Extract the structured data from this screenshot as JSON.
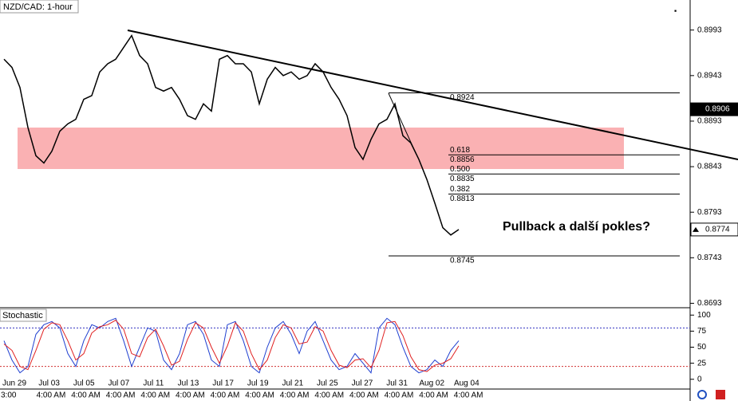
{
  "chart_data": [
    {
      "type": "line",
      "title": "NZD/CAD: 1-hour",
      "series": [
        {
          "name": "Close",
          "color": "#000000",
          "values": [
            0.8961,
            0.8952,
            0.893,
            0.8886,
            0.8855,
            0.8847,
            0.886,
            0.8882,
            0.889,
            0.8895,
            0.8917,
            0.8921,
            0.8947,
            0.8956,
            0.8961,
            0.8974,
            0.8987,
            0.8965,
            0.8956,
            0.893,
            0.8926,
            0.893,
            0.8917,
            0.8899,
            0.8895,
            0.8912,
            0.8904,
            0.8961,
            0.8965,
            0.8956,
            0.8956,
            0.8947,
            0.8912,
            0.8939,
            0.8952,
            0.8943,
            0.8947,
            0.8939,
            0.8943,
            0.8956,
            0.8947,
            0.893,
            0.8917,
            0.8899,
            0.8864,
            0.8851,
            0.8873,
            0.889,
            0.8895,
            0.8912,
            0.8877,
            0.8869,
            0.8851,
            0.8829,
            0.8803,
            0.8776,
            0.8768,
            0.8774
          ]
        }
      ],
      "ylim": [
        0.8689,
        0.9026
      ],
      "yticks": [
        0.8993,
        0.8943,
        0.8893,
        0.8843,
        0.8793,
        0.8743,
        0.8693
      ],
      "price_markers": [
        0.8906,
        0.8774
      ],
      "fib": {
        "high": 0.8924,
        "low": 0.8745,
        "levels": [
          {
            "ratio": "0.618",
            "price": 0.8856
          },
          {
            "ratio": "0.500",
            "price": 0.8835
          },
          {
            "ratio": "0.382",
            "price": 0.8813
          }
        ]
      },
      "annotation": "Pullback a další pokles?"
    },
    {
      "type": "line",
      "title": "Stochastic",
      "series": [
        {
          "name": "%K",
          "color": "#1f3fd0",
          "values": [
            60,
            30,
            10,
            20,
            70,
            85,
            90,
            80,
            40,
            20,
            60,
            85,
            80,
            90,
            95,
            60,
            20,
            50,
            80,
            75,
            30,
            15,
            40,
            85,
            90,
            70,
            30,
            20,
            85,
            90,
            60,
            20,
            10,
            50,
            80,
            90,
            70,
            40,
            75,
            90,
            60,
            30,
            15,
            20,
            40,
            25,
            10,
            80,
            95,
            85,
            50,
            20,
            10,
            15,
            30,
            20,
            45,
            60
          ]
        },
        {
          "name": "%D",
          "color": "#e02020",
          "values": [
            55,
            45,
            20,
            15,
            45,
            78,
            88,
            85,
            60,
            30,
            40,
            72,
            82,
            85,
            92,
            78,
            40,
            35,
            65,
            78,
            52,
            22,
            28,
            62,
            88,
            80,
            50,
            25,
            52,
            88,
            75,
            40,
            15,
            30,
            65,
            85,
            80,
            55,
            58,
            82,
            75,
            45,
            22,
            18,
            30,
            32,
            18,
            45,
            88,
            90,
            68,
            35,
            15,
            12,
            22,
            25,
            32,
            52
          ]
        }
      ],
      "ylim": [
        -14,
        109
      ],
      "yticks": [
        100,
        75,
        50,
        25,
        0
      ],
      "levels": [
        {
          "value": 80,
          "color": "#3030c0"
        },
        {
          "value": 20,
          "color": "#d03030"
        }
      ],
      "date_labels": [
        "Jun 29",
        "Jul 03",
        "Jul 05",
        "Jul 07",
        "Jul 11",
        "Jul 13",
        "Jul 17",
        "Jul 19",
        "Jul 21",
        "Jul 25",
        "Jul 27",
        "Jul 31",
        "Aug 02",
        "Aug 04"
      ],
      "time_labels": [
        "3:00",
        "4:00 AM",
        "4:00 AM",
        "4:00 AM",
        "4:00 AM",
        "4:00 AM",
        "4:00 AM",
        "4:00 AM",
        "4:00 AM",
        "4:00 AM",
        "4:00 AM",
        "4:00 AM",
        "4:00 AM",
        "4:00 AM"
      ]
    }
  ]
}
